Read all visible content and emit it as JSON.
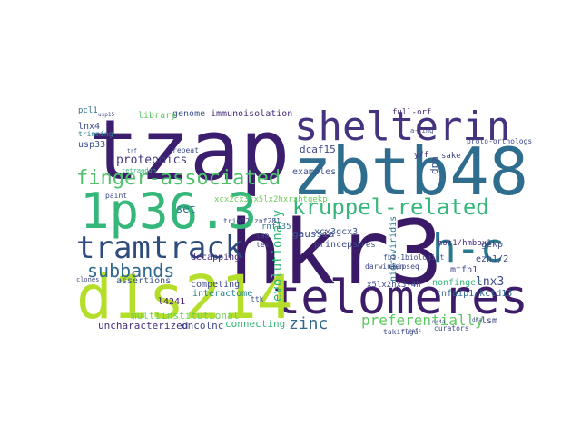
{
  "words": [
    {
      "text": "tzap",
      "color": "#3b1e6e"
    },
    {
      "text": "hkr3",
      "color": "#3a1a66"
    },
    {
      "text": "zbtb48",
      "color": "#2e6d8e"
    },
    {
      "text": "shelterin",
      "color": "#46337f"
    },
    {
      "text": "telomeres",
      "color": "#3d1c69"
    },
    {
      "text": "d1s214",
      "color": "#b5de2b"
    },
    {
      "text": "1p36.3",
      "color": "#35b779"
    },
    {
      "text": "tramtrack",
      "color": "#2e4c7e"
    },
    {
      "text": "finger-associated",
      "color": "#4fc16b"
    },
    {
      "text": "kruppel-related",
      "color": "#35b779"
    },
    {
      "text": "h-c",
      "color": "#2a788e"
    },
    {
      "text": "subbands",
      "color": "#31688e"
    },
    {
      "text": "proteomics",
      "color": "#443a83"
    },
    {
      "text": "zinc",
      "color": "#31688e"
    },
    {
      "text": "preferentially",
      "color": "#5ec962"
    },
    {
      "text": "lnx3",
      "color": "#3e4989"
    },
    {
      "text": "evolutionary",
      "color": "#35b779"
    },
    {
      "text": "multiinstitutional",
      "color": "#6ece58"
    },
    {
      "text": "uncharacterized",
      "color": "#472d7b"
    },
    {
      "text": "oncolnc",
      "color": "#3e4989"
    },
    {
      "text": "connecting",
      "color": "#35b779"
    },
    {
      "text": "immunoisolation",
      "color": "#472d7b"
    },
    {
      "text": "genome",
      "color": "#3b528b"
    },
    {
      "text": "library",
      "color": "#5ec962"
    },
    {
      "text": "full-orf",
      "color": "#472d7b"
    },
    {
      "text": "lnx4",
      "color": "#3e4989"
    },
    {
      "text": "usp33",
      "color": "#3b528b"
    },
    {
      "text": "pcl1",
      "color": "#2c728e"
    },
    {
      "text": "trimming",
      "color": "#26828e"
    },
    {
      "text": "dcaf15",
      "color": "#3e4989"
    },
    {
      "text": "examples",
      "color": "#3b528b"
    },
    {
      "text": "gaussia",
      "color": "#3b528b"
    },
    {
      "text": "dpa",
      "color": "#3b528b"
    },
    {
      "text": "xcx2cx3fx5lx2hxrxhtgekp",
      "color": "#6ece58"
    },
    {
      "text": "xcx3gcx3",
      "color": "#3b528b"
    },
    {
      "text": "princeps",
      "color": "#3e4989"
    },
    {
      "text": "fres",
      "color": "#3e4989"
    },
    {
      "text": "nigroviridis",
      "color": "#2a788e"
    },
    {
      "text": "hot1/hmbox1",
      "color": "#472d7b"
    },
    {
      "text": "mtfp1",
      "color": "#3e4989"
    },
    {
      "text": "ezh1/2",
      "color": "#3e4989"
    },
    {
      "text": "tnfaip1/kctd13",
      "color": "#31688e"
    },
    {
      "text": "nonfinger",
      "color": "#35b779"
    },
    {
      "text": "x5lx2hx3-4h",
      "color": "#3e4989"
    },
    {
      "text": "rnf135",
      "color": "#2c728e"
    },
    {
      "text": "decapping",
      "color": "#472d7b"
    },
    {
      "text": "competing",
      "color": "#3e4989"
    },
    {
      "text": "interactome",
      "color": "#26828e"
    },
    {
      "text": "assertions",
      "color": "#3b528b"
    },
    {
      "text": "set",
      "color": "#2c728e"
    },
    {
      "text": "l4241",
      "color": "#482173"
    },
    {
      "text": "gekp",
      "color": "#3e4989"
    },
    {
      "text": "lsm",
      "color": "#3e4989"
    },
    {
      "text": "sake",
      "color": "#3e4989"
    },
    {
      "text": "y/f",
      "color": "#472d7b"
    },
    {
      "text": "trim32",
      "color": "#3e4989"
    },
    {
      "text": "znf281",
      "color": "#3e4989"
    },
    {
      "text": "tab",
      "color": "#3e4989"
    },
    {
      "text": "darwinian",
      "color": "#3e4989"
    },
    {
      "text": "takifugu",
      "color": "#3e4989"
    },
    {
      "text": "tes",
      "color": "#3e4989"
    },
    {
      "text": "ttk",
      "color": "#3e4989"
    },
    {
      "text": "fbi-1",
      "color": "#3e4989"
    },
    {
      "text": "repeat",
      "color": "#3e4989"
    },
    {
      "text": "proto-orthologs",
      "color": "#3e4989"
    },
    {
      "text": "biologist",
      "color": "#3e4989"
    },
    {
      "text": "curators",
      "color": "#3e4989"
    },
    {
      "text": "chipseq",
      "color": "#3e4989"
    },
    {
      "text": "paint",
      "color": "#3e4989"
    },
    {
      "text": "usp15",
      "color": "#3e4989"
    },
    {
      "text": "clones",
      "color": "#3e4989"
    },
    {
      "text": "tetraodon",
      "color": "#35b779"
    },
    {
      "text": "dna",
      "color": "#3e4989"
    },
    {
      "text": "nr4a",
      "color": "#3e4989"
    },
    {
      "text": "trf",
      "color": "#3e4989"
    },
    {
      "text": "trafs",
      "color": "#3e4989"
    },
    {
      "text": "a-ring",
      "color": "#3e4989"
    }
  ]
}
